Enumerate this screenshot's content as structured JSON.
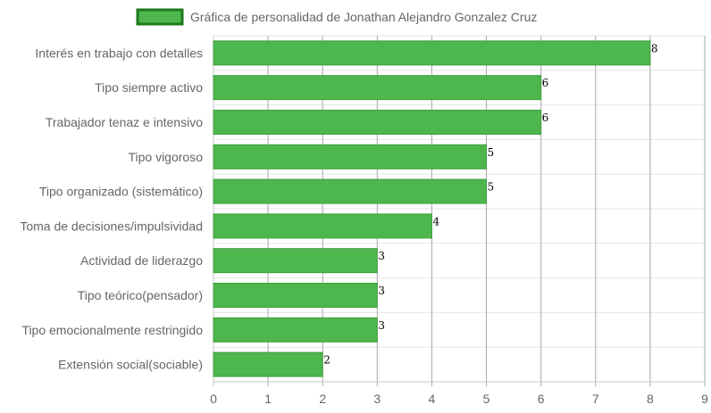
{
  "chart_data": {
    "type": "bar",
    "orientation": "horizontal",
    "categories": [
      "Interés en trabajo con detalles",
      "Tipo siempre activo",
      "Trabajador tenaz e intensivo",
      "Tipo vigoroso",
      "Tipo organizado (sistemático)",
      "Toma de decisiones/impulsividad",
      "Actividad de liderazgo",
      "Tipo teórico(pensador)",
      "Tipo emocionalmente restringido",
      "Extensión social(sociable)"
    ],
    "series": [
      {
        "name": "Gráfica de personalidad de Jonathan Alejandro Gonzalez Cruz",
        "values": [
          8,
          6,
          6,
          5,
          5,
          4,
          3,
          3,
          3,
          2
        ]
      }
    ],
    "xlim": [
      0,
      9
    ],
    "xticks": [
      "0",
      "1",
      "2",
      "3",
      "4",
      "5",
      "6",
      "7",
      "8",
      "9"
    ],
    "grid": true,
    "legend_position": "top",
    "colors": {
      "bar_fill": "#4db64d",
      "bar_border": "#3f9f3f",
      "legend_border": "#1f7a1f"
    }
  }
}
